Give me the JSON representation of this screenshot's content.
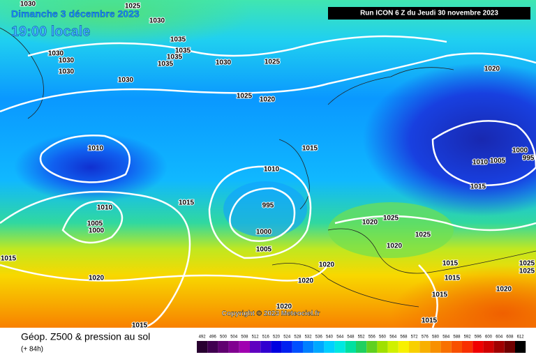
{
  "header": {
    "date": "Dimanche 3 décembre 2023",
    "time": "19:00 locale",
    "run": "Run ICON 6 Z du Jeudi 30 novembre 2023"
  },
  "copyright": "Copyright © 2023 Meteociel.fr",
  "footer": {
    "title": "Géop. Z500 & pression au sol",
    "lead": "(+ 84h)"
  },
  "scale": {
    "labels": [
      "492",
      "496",
      "500",
      "504",
      "508",
      "512",
      "516",
      "520",
      "524",
      "528",
      "532",
      "536",
      "540",
      "544",
      "548",
      "552",
      "556",
      "560",
      "564",
      "568",
      "572",
      "576",
      "580",
      "584",
      "588",
      "592",
      "596",
      "600",
      "604",
      "608",
      "612"
    ]
  },
  "isobar_labels": [
    "1030",
    "1025",
    "1030",
    "1035",
    "1035",
    "1035",
    "1035",
    "1030",
    "1030",
    "1030",
    "1030",
    "1030",
    "1025",
    "1025",
    "1020",
    "1020",
    "1010",
    "1015",
    "1010",
    "1000",
    "1005",
    "1010",
    "995",
    "1015",
    "1010",
    "1015",
    "995",
    "1005",
    "1000",
    "1000",
    "1005",
    "1020",
    "1025",
    "1025",
    "1020",
    "1015",
    "1020",
    "1015",
    "1025",
    "1025",
    "1020",
    "1020",
    "1015",
    "1015",
    "1020",
    "1020",
    "1015",
    "1015"
  ]
}
